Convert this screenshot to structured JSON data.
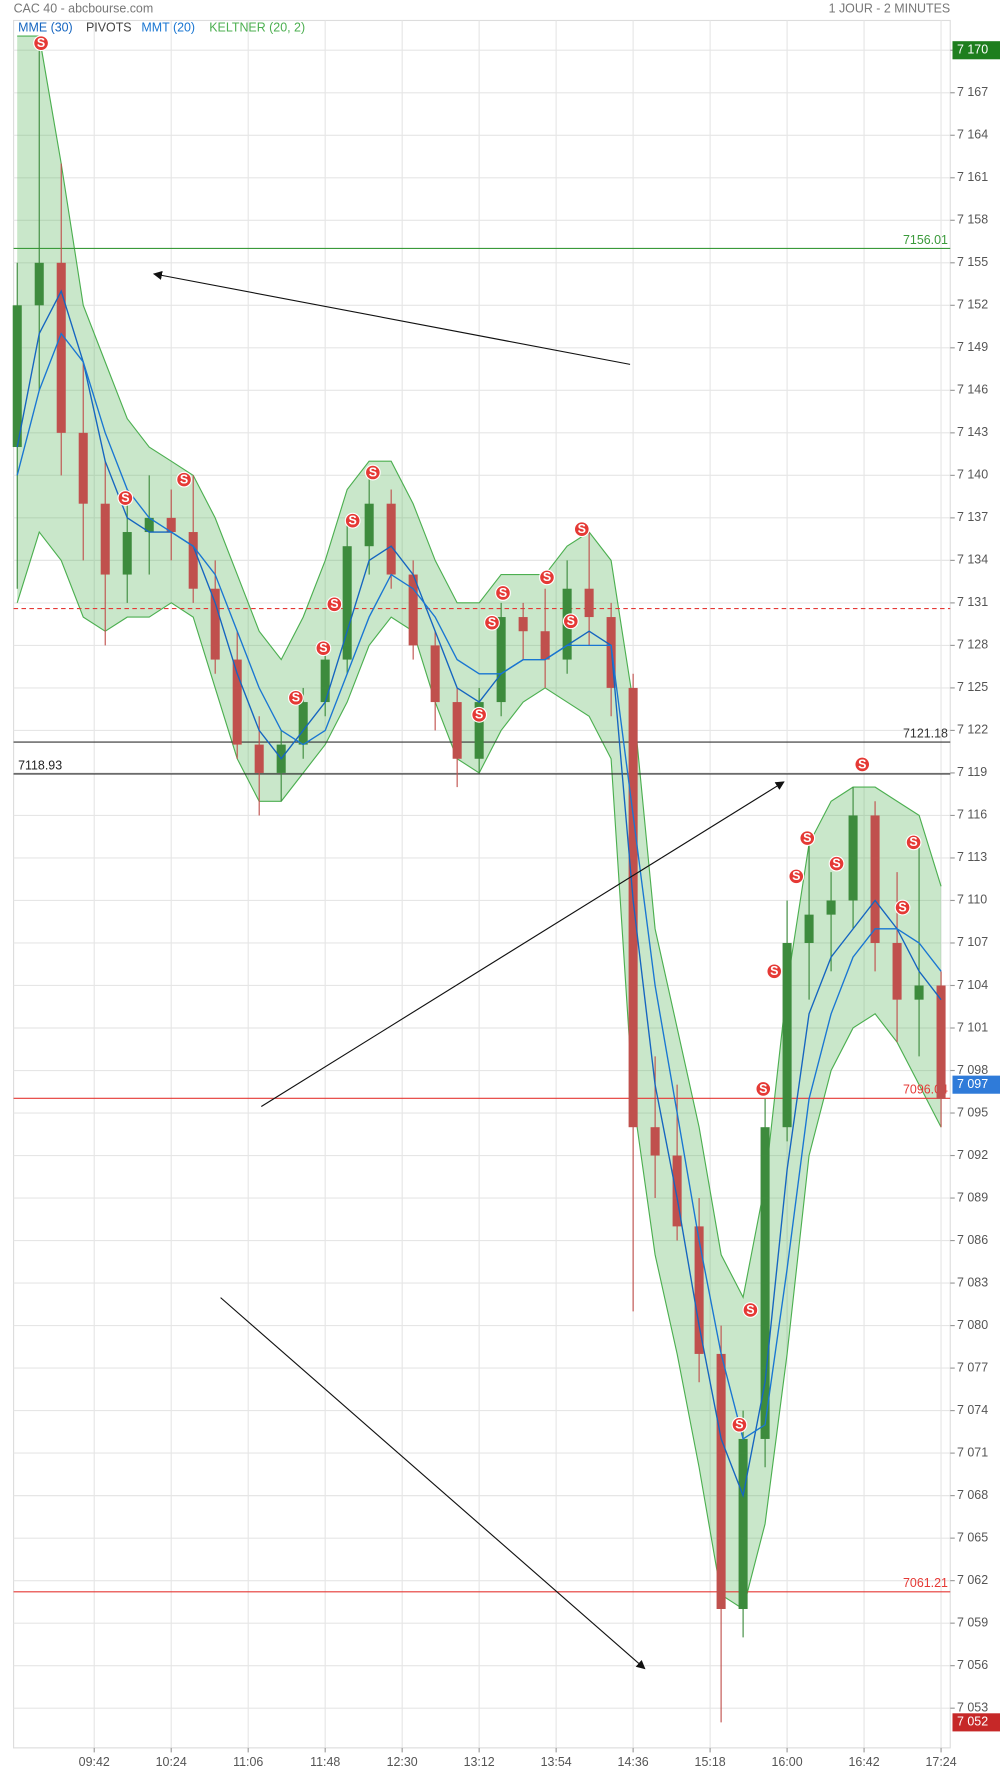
{
  "chart_data": {
    "type": "candlestick",
    "title": "CAC 40 - abcbourse.com",
    "subtitle": "1 JOUR - 2 MINUTES",
    "x": [
      "09:00",
      "09:12",
      "09:24",
      "09:36",
      "09:48",
      "10:00",
      "10:12",
      "10:24",
      "10:36",
      "10:48",
      "11:00",
      "11:12",
      "11:24",
      "11:36",
      "11:48",
      "12:00",
      "12:12",
      "12:24",
      "12:36",
      "12:48",
      "13:00",
      "13:12",
      "13:24",
      "13:36",
      "13:48",
      "14:00",
      "14:12",
      "14:24",
      "14:36",
      "14:48",
      "15:00",
      "15:12",
      "15:24",
      "15:36",
      "15:48",
      "16:00",
      "16:12",
      "16:24",
      "16:36",
      "16:48",
      "17:00",
      "17:12",
      "17:24"
    ],
    "open": [
      7142,
      7152,
      7155,
      7143,
      7138,
      7133,
      7136,
      7137,
      7136,
      7132,
      7127,
      7121,
      7119,
      7121,
      7124,
      7127,
      7135,
      7138,
      7133,
      7128,
      7124,
      7120,
      7124,
      7130,
      7129,
      7127,
      7132,
      7130,
      7125,
      7094,
      7092,
      7087,
      7078,
      7060,
      7072,
      7094,
      7107,
      7109,
      7110,
      7116,
      7107,
      7103,
      7104
    ],
    "high": [
      7155,
      7170,
      7162,
      7148,
      7141,
      7139,
      7140,
      7139,
      7140,
      7134,
      7129,
      7123,
      7122,
      7125,
      7128,
      7137,
      7140,
      7139,
      7134,
      7129,
      7125,
      7125,
      7131,
      7131,
      7132,
      7134,
      7136,
      7131,
      7126,
      7099,
      7097,
      7089,
      7080,
      7074,
      7096,
      7110,
      7114,
      7112,
      7118,
      7117,
      7112,
      7114,
      7105
    ],
    "low": [
      7132,
      7146,
      7140,
      7134,
      7128,
      7131,
      7133,
      7134,
      7131,
      7126,
      7120,
      7116,
      7117,
      7120,
      7123,
      7126,
      7133,
      7132,
      7127,
      7122,
      7118,
      7119,
      7123,
      7127,
      7125,
      7126,
      7128,
      7123,
      7081,
      7089,
      7086,
      7076,
      7052,
      7058,
      7070,
      7093,
      7103,
      7105,
      7108,
      7105,
      7100,
      7099,
      7094
    ],
    "close": [
      7152,
      7155,
      7143,
      7138,
      7133,
      7136,
      7137,
      7136,
      7132,
      7127,
      7121,
      7119,
      7121,
      7124,
      7127,
      7135,
      7138,
      7133,
      7128,
      7124,
      7120,
      7124,
      7130,
      7129,
      7127,
      7132,
      7130,
      7125,
      7094,
      7092,
      7087,
      7078,
      7060,
      7072,
      7094,
      7107,
      7109,
      7110,
      7116,
      7107,
      7103,
      7104,
      7096
    ],
    "up_color": "#3d8b3d",
    "down_color": "#c0504d",
    "indicators": [
      {
        "name": "MME (30)",
        "color": "#1565c0",
        "values": [
          7142,
          7150,
          7153,
          7148,
          7141,
          7137,
          7136,
          7136,
          7135,
          7131,
          7126,
          7122,
          7120,
          7122,
          7124,
          7129,
          7134,
          7135,
          7133,
          7129,
          7125,
          7124,
          7126,
          7127,
          7127,
          7128,
          7129,
          7128,
          7110,
          7097,
          7089,
          7080,
          7072,
          7068,
          7076,
          7091,
          7102,
          7106,
          7108,
          7110,
          7108,
          7105,
          7103
        ]
      },
      {
        "name": "PIVOTS",
        "color": "#444444"
      },
      {
        "name": "MMT (20)",
        "color": "#1976d2",
        "values": [
          7140,
          7146,
          7150,
          7148,
          7143,
          7139,
          7137,
          7136,
          7135,
          7133,
          7129,
          7125,
          7122,
          7121,
          7122,
          7126,
          7130,
          7133,
          7132,
          7130,
          7127,
          7126,
          7126,
          7127,
          7127,
          7128,
          7128,
          7128,
          7116,
          7104,
          7095,
          7086,
          7078,
          7072,
          7073,
          7084,
          7096,
          7102,
          7106,
          7108,
          7108,
          7107,
          7105
        ]
      },
      {
        "name": "KELTNER (20, 2)",
        "color": "#4caf50",
        "upper": [
          7171,
          7171,
          7162,
          7152,
          7148,
          7144,
          7142,
          7141,
          7140,
          7137,
          7133,
          7129,
          7127,
          7130,
          7134,
          7139,
          7141,
          7141,
          7138,
          7134,
          7131,
          7131,
          7133,
          7133,
          7133,
          7135,
          7136,
          7134,
          7124,
          7108,
          7101,
          7094,
          7085,
          7082,
          7090,
          7104,
          7114,
          7117,
          7118,
          7118,
          7117,
          7116,
          7111
        ],
        "lower": [
          7131,
          7136,
          7134,
          7130,
          7129,
          7130,
          7130,
          7131,
          7130,
          7125,
          7120,
          7117,
          7117,
          7119,
          7121,
          7124,
          7128,
          7130,
          7129,
          7124,
          7120,
          7119,
          7122,
          7124,
          7125,
          7124,
          7123,
          7120,
          7096,
          7085,
          7078,
          7070,
          7061,
          7060,
          7066,
          7078,
          7092,
          7098,
          7101,
          7102,
          7100,
          7097,
          7094
        ]
      }
    ],
    "levels": [
      {
        "value": 7156.01,
        "color": "#3a9a3a",
        "label_side": "right"
      },
      {
        "value": 7130.6,
        "color": "#e53935",
        "dashed": true
      },
      {
        "value": 7121.18,
        "color": "#333333",
        "label_side": "right"
      },
      {
        "value": 7118.93,
        "color": "#222222",
        "label_side": "left"
      },
      {
        "value": 7096.04,
        "color": "#e53935",
        "label_side": "right"
      },
      {
        "value": 7061.21,
        "color": "#e53935",
        "label_side": "right"
      }
    ],
    "signal_label": "S",
    "signal_color": "#e53935",
    "signals": {
      "x": [
        "09:13",
        "09:59",
        "10:31",
        "11:32",
        "11:47",
        "11:53",
        "12:03",
        "12:14",
        "13:12",
        "13:19",
        "13:25",
        "13:49",
        "14:02",
        "14:08",
        "15:34",
        "15:40",
        "15:47",
        "15:53",
        "16:05",
        "16:11",
        "16:27",
        "16:41",
        "17:03",
        "17:09"
      ],
      "values": [
        7170.5,
        7138.4,
        7139.7,
        7124.3,
        7127.8,
        7130.9,
        7136.8,
        7140.2,
        7123.1,
        7129.6,
        7131.7,
        7132.8,
        7129.7,
        7136.2,
        7073.0,
        7081.1,
        7096.7,
        7105.0,
        7111.7,
        7114.4,
        7112.6,
        7119.6,
        7109.5,
        7114.1
      ]
    },
    "badges": [
      {
        "value": 7170,
        "label": "7 170",
        "color": "#1e7e1e"
      },
      {
        "value": 7097,
        "label": "7 097",
        "color": "#2f7bd9"
      },
      {
        "value": 7052,
        "label": "7 052",
        "color": "#c62828"
      }
    ],
    "xlim": [
      "08:58",
      "17:29"
    ],
    "xticks": [
      "09:42",
      "10:24",
      "11:06",
      "11:48",
      "12:30",
      "13:12",
      "13:54",
      "14:36",
      "15:18",
      "16:00",
      "16:42",
      "17:24"
    ],
    "ylim": [
      7050.2,
      7172.1
    ],
    "yticks": [
      {
        "value": 7053,
        "label": "7 053"
      },
      {
        "value": 7056,
        "label": "7 056"
      },
      {
        "value": 7059,
        "label": "7 059"
      },
      {
        "value": 7062,
        "label": "7 062"
      },
      {
        "value": 7065,
        "label": "7 065"
      },
      {
        "value": 7068,
        "label": "7 068"
      },
      {
        "value": 7071,
        "label": "7 071"
      },
      {
        "value": 7074,
        "label": "7 074"
      },
      {
        "value": 7077,
        "label": "7 077"
      },
      {
        "value": 7080,
        "label": "7 080"
      },
      {
        "value": 7083,
        "label": "7 083"
      },
      {
        "value": 7086,
        "label": "7 086"
      },
      {
        "value": 7089,
        "label": "7 089"
      },
      {
        "value": 7092,
        "label": "7 092"
      },
      {
        "value": 7095,
        "label": "7 095"
      },
      {
        "value": 7098,
        "label": "7 098"
      },
      {
        "value": 7101,
        "label": "7 101"
      },
      {
        "value": 7104,
        "label": "7 104"
      },
      {
        "value": 7107,
        "label": "7 107"
      },
      {
        "value": 7110,
        "label": "7 110"
      },
      {
        "value": 7113,
        "label": "7 113"
      },
      {
        "value": 7116,
        "label": "7 116"
      },
      {
        "value": 7119,
        "label": "7 119"
      },
      {
        "value": 7122,
        "label": "7 122"
      },
      {
        "value": 7125,
        "label": "7 125"
      },
      {
        "value": 7128,
        "label": "7 128"
      },
      {
        "value": 7131,
        "label": "7 131"
      },
      {
        "value": 7134,
        "label": "7 134"
      },
      {
        "value": 7137,
        "label": "7 137"
      },
      {
        "value": 7140,
        "label": "7 140"
      },
      {
        "value": 7143,
        "label": "7 143"
      },
      {
        "value": 7146,
        "label": "7 146"
      },
      {
        "value": 7149,
        "label": "7 149"
      },
      {
        "value": 7152,
        "label": "7 152"
      },
      {
        "value": 7155,
        "label": "7 155"
      },
      {
        "value": 7158,
        "label": "7 158"
      },
      {
        "value": 7161,
        "label": "7 161"
      },
      {
        "value": 7164,
        "label": "7 164"
      },
      {
        "value": 7167,
        "label": "7 167"
      },
      {
        "value": 7170,
        "label": "7 170"
      }
    ],
    "grid": true
  }
}
